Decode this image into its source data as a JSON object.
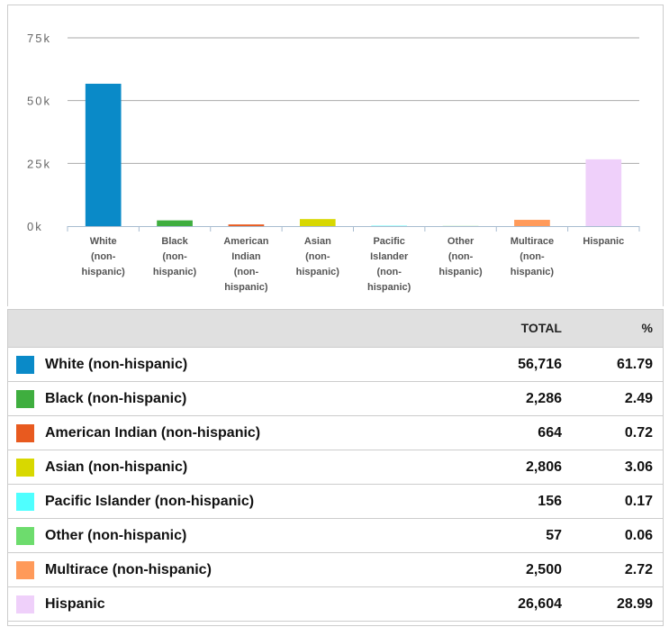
{
  "chart_data": {
    "type": "bar",
    "categories": [
      "White (non-hispanic)",
      "Black (non-hispanic)",
      "American Indian (non-hispanic)",
      "Asian (non-hispanic)",
      "Pacific Islander (non-hispanic)",
      "Other (non-hispanic)",
      "Multirace (non-hispanic)",
      "Hispanic"
    ],
    "values": [
      56716,
      2286,
      664,
      2806,
      156,
      57,
      2500,
      26604
    ],
    "colors": [
      "#0a8ac8",
      "#3fae3f",
      "#e85a1f",
      "#d8d800",
      "#4fffff",
      "#6ddc6d",
      "#ff9a5a",
      "#efd0fa"
    ],
    "ylim": [
      0,
      75000
    ],
    "yticks": [
      {
        "value": 0,
        "label": "0k"
      },
      {
        "value": 25000,
        "label": "25k"
      },
      {
        "value": 50000,
        "label": "50k"
      },
      {
        "value": 75000,
        "label": "75k"
      }
    ],
    "grid": true
  },
  "table": {
    "columns": [
      "TOTAL",
      "%"
    ],
    "rows": [
      [
        "56,716",
        "61.79"
      ],
      [
        "2,286",
        "2.49"
      ],
      [
        "664",
        "0.72"
      ],
      [
        "2,806",
        "3.06"
      ],
      [
        "156",
        "0.17"
      ],
      [
        "57",
        "0.06"
      ],
      [
        "2,500",
        "2.72"
      ],
      [
        "26,604",
        "28.99"
      ]
    ]
  }
}
